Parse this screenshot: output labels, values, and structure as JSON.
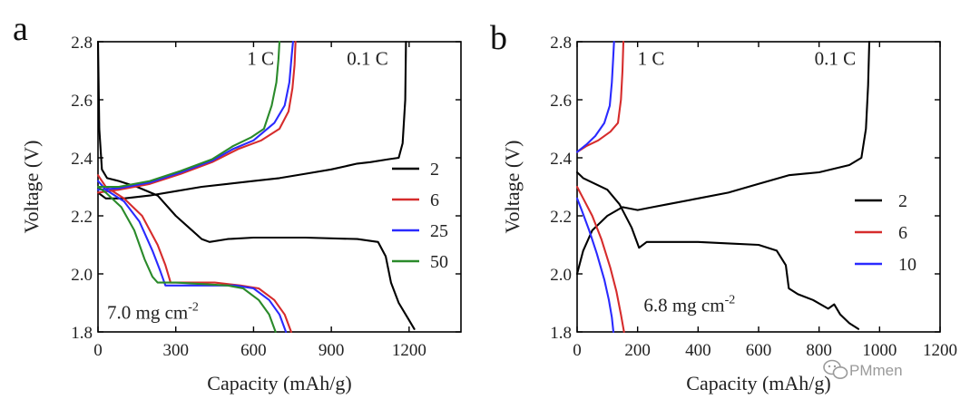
{
  "watermark": {
    "text": "PMmen",
    "icon": "wechat-icon"
  },
  "chart_data": [
    {
      "type": "line",
      "panel_label": "a",
      "xlabel": "Capacity (mAh/g)",
      "ylabel": "Voltage (V)",
      "xlim": [
        0,
        1400
      ],
      "ylim": [
        1.8,
        2.8
      ],
      "x_ticks": [
        0,
        300,
        600,
        900,
        1200
      ],
      "y_ticks": [
        1.8,
        2.0,
        2.2,
        2.4,
        2.6,
        2.8
      ],
      "grid": false,
      "legend_position": "right",
      "annotations": [
        {
          "text": "1 C",
          "x": 575,
          "y": 2.72
        },
        {
          "text": "0.1 C",
          "x": 960,
          "y": 2.72
        },
        {
          "text": "7.0 mg cm",
          "sup": "-2",
          "x": 35,
          "y": 1.845
        }
      ],
      "series": [
        {
          "name": "2",
          "color": "#000000",
          "discharge": {
            "x": [
              0,
              5,
              15,
              35,
              80,
              150,
              230,
              300,
              350,
              400,
              430,
              500,
              600,
              800,
              1000,
              1080,
              1110,
              1130,
              1160,
              1200,
              1220
            ],
            "y": [
              2.8,
              2.5,
              2.36,
              2.33,
              2.32,
              2.3,
              2.27,
              2.2,
              2.16,
              2.12,
              2.11,
              2.12,
              2.125,
              2.125,
              2.12,
              2.11,
              2.06,
              1.97,
              1.9,
              1.84,
              1.81
            ]
          },
          "charge": {
            "x": [
              0,
              30,
              100,
              200,
              300,
              400,
              500,
              600,
              700,
              800,
              900,
              1000,
              1050,
              1120,
              1160,
              1175,
              1185,
              1188
            ],
            "y": [
              2.28,
              2.26,
              2.26,
              2.27,
              2.285,
              2.3,
              2.31,
              2.32,
              2.33,
              2.345,
              2.36,
              2.38,
              2.385,
              2.395,
              2.4,
              2.45,
              2.6,
              2.8
            ]
          }
        },
        {
          "name": "6",
          "color": "#d62c2c",
          "discharge": {
            "x": [
              0,
              30,
              100,
              170,
              230,
              260,
              280,
              350,
              450,
              550,
              620,
              680,
              720,
              745
            ],
            "y": [
              2.34,
              2.3,
              2.26,
              2.2,
              2.1,
              2.03,
              1.97,
              1.97,
              1.97,
              1.96,
              1.95,
              1.91,
              1.86,
              1.8
            ]
          },
          "charge": {
            "x": [
              0,
              80,
              200,
              320,
              440,
              540,
              630,
              700,
              735,
              750,
              758,
              762
            ],
            "y": [
              2.28,
              2.29,
              2.31,
              2.345,
              2.385,
              2.43,
              2.46,
              2.5,
              2.56,
              2.64,
              2.72,
              2.8
            ]
          }
        },
        {
          "name": "25",
          "color": "#2a2aff",
          "discharge": {
            "x": [
              0,
              30,
              100,
              160,
              210,
              240,
              260,
              330,
              430,
              530,
              600,
              660,
              700,
              725
            ],
            "y": [
              2.32,
              2.29,
              2.25,
              2.18,
              2.08,
              2.01,
              1.96,
              1.96,
              1.96,
              1.96,
              1.95,
              1.91,
              1.86,
              1.8
            ]
          },
          "charge": {
            "x": [
              0,
              80,
              200,
              320,
              440,
              520,
              600,
              680,
              720,
              738,
              746,
              752
            ],
            "y": [
              2.29,
              2.295,
              2.315,
              2.35,
              2.39,
              2.43,
              2.46,
              2.52,
              2.58,
              2.66,
              2.74,
              2.8
            ]
          }
        },
        {
          "name": "50",
          "color": "#2a8a2a",
          "discharge": {
            "x": [
              0,
              30,
              90,
              140,
              180,
              210,
              230,
              300,
              400,
              500,
              560,
              620,
              660,
              685
            ],
            "y": [
              2.3,
              2.28,
              2.23,
              2.15,
              2.05,
              1.99,
              1.97,
              1.97,
              1.965,
              1.96,
              1.95,
              1.91,
              1.86,
              1.8
            ]
          },
          "charge": {
            "x": [
              0,
              80,
              200,
              320,
              440,
              520,
              590,
              640,
              670,
              688,
              696,
              700
            ],
            "y": [
              2.3,
              2.3,
              2.32,
              2.355,
              2.395,
              2.44,
              2.47,
              2.5,
              2.58,
              2.66,
              2.74,
              2.8
            ]
          }
        }
      ]
    },
    {
      "type": "line",
      "panel_label": "b",
      "xlabel": "Capacity (mAh/g)",
      "ylabel": "Voltage (V)",
      "xlim": [
        0,
        1200
      ],
      "ylim": [
        1.8,
        2.8
      ],
      "x_ticks": [
        0,
        200,
        400,
        600,
        800,
        1000,
        1200
      ],
      "y_ticks": [
        1.8,
        2.0,
        2.2,
        2.4,
        2.6,
        2.8
      ],
      "grid": false,
      "legend_position": "right",
      "annotations": [
        {
          "text": "1 C",
          "x": 200,
          "y": 2.72
        },
        {
          "text": "0.1 C",
          "x": 785,
          "y": 2.72
        },
        {
          "text": "6.8 mg cm",
          "sup": "-2",
          "x": 220,
          "y": 1.87
        }
      ],
      "series": [
        {
          "name": "2",
          "color": "#000000",
          "discharge": {
            "x": [
              0,
              20,
              60,
              100,
              140,
              180,
              205,
              230,
              300,
              400,
              500,
              600,
              660,
              690,
              700,
              730,
              780,
              830,
              850,
              870,
              900,
              930
            ],
            "y": [
              2.35,
              2.33,
              2.31,
              2.29,
              2.24,
              2.16,
              2.09,
              2.11,
              2.11,
              2.11,
              2.105,
              2.1,
              2.08,
              2.03,
              1.95,
              1.93,
              1.91,
              1.88,
              1.895,
              1.86,
              1.83,
              1.81
            ]
          },
          "charge": {
            "x": [
              0,
              20,
              50,
              100,
              150,
              200,
              250,
              300,
              400,
              500,
              600,
              700,
              800,
              900,
              940,
              955,
              962,
              966
            ],
            "y": [
              2.0,
              2.08,
              2.15,
              2.2,
              2.23,
              2.22,
              2.23,
              2.24,
              2.26,
              2.28,
              2.31,
              2.34,
              2.35,
              2.375,
              2.4,
              2.5,
              2.65,
              2.8
            ]
          }
        },
        {
          "name": "6",
          "color": "#d62c2c",
          "discharge": {
            "x": [
              0,
              20,
              50,
              80,
              110,
              130,
              145,
              155
            ],
            "y": [
              2.3,
              2.26,
              2.2,
              2.12,
              2.02,
              1.94,
              1.86,
              1.8
            ]
          },
          "charge": {
            "x": [
              0,
              30,
              70,
              110,
              135,
              145,
              150,
              153
            ],
            "y": [
              2.42,
              2.44,
              2.46,
              2.49,
              2.52,
              2.6,
              2.7,
              2.8
            ]
          }
        },
        {
          "name": "10",
          "color": "#2a2aff",
          "discharge": {
            "x": [
              0,
              15,
              40,
              65,
              90,
              105,
              115,
              120
            ],
            "y": [
              2.26,
              2.22,
              2.15,
              2.07,
              1.98,
              1.91,
              1.85,
              1.8
            ]
          },
          "charge": {
            "x": [
              0,
              30,
              60,
              90,
              108,
              115,
              119,
              122
            ],
            "y": [
              2.42,
              2.445,
              2.475,
              2.52,
              2.58,
              2.66,
              2.74,
              2.8
            ]
          }
        }
      ]
    }
  ]
}
